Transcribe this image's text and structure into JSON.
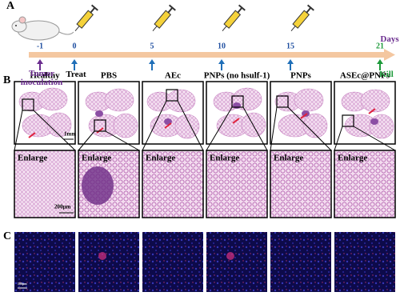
{
  "panel_labels": [
    "A",
    "B",
    "C"
  ],
  "timeline": {
    "days": [
      -1,
      0,
      5,
      10,
      15,
      21
    ],
    "days_label": "Days",
    "inoculation": "Tumor inoculation",
    "treat": "Treat",
    "kill": "Kill"
  },
  "groups": [
    "Healthy",
    "PBS",
    "AEc",
    "PNPs (no hsulf-1)",
    "PNPs",
    "ASEc@PNPs"
  ],
  "enlarge_label": "Enlarge",
  "scale_bars": {
    "section": "1mm",
    "enlarge": "200μm",
    "fluorescence": "100μm"
  }
}
